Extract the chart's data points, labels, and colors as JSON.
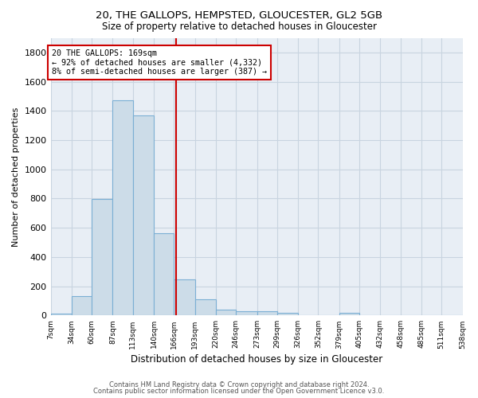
{
  "title1": "20, THE GALLOPS, HEMPSTED, GLOUCESTER, GL2 5GB",
  "title2": "Size of property relative to detached houses in Gloucester",
  "xlabel": "Distribution of detached houses by size in Gloucester",
  "ylabel": "Number of detached properties",
  "footer1": "Contains HM Land Registry data © Crown copyright and database right 2024.",
  "footer2": "Contains public sector information licensed under the Open Government Licence v3.0.",
  "annotation_title": "20 THE GALLOPS: 169sqm",
  "annotation_line1": "← 92% of detached houses are smaller (4,332)",
  "annotation_line2": "8% of semi-detached houses are larger (387) →",
  "property_size": 169,
  "bar_color": "#ccdce8",
  "bar_edge_color": "#7bafd4",
  "vline_color": "#cc0000",
  "annotation_box_color": "#cc0000",
  "grid_color": "#c8d4e0",
  "background_color": "#e8eef5",
  "ylim": [
    0,
    1900
  ],
  "bin_edges": [
    7,
    34,
    60,
    87,
    113,
    140,
    166,
    193,
    220,
    246,
    273,
    299,
    326,
    352,
    379,
    405,
    432,
    458,
    485,
    511,
    538
  ],
  "bar_heights": [
    13,
    130,
    795,
    1470,
    1370,
    565,
    248,
    110,
    38,
    30,
    30,
    20,
    0,
    0,
    20,
    0,
    0,
    0,
    0,
    0
  ],
  "yticks": [
    0,
    200,
    400,
    600,
    800,
    1000,
    1200,
    1400,
    1600,
    1800
  ],
  "tick_labels": [
    "7sqm",
    "34sqm",
    "60sqm",
    "87sqm",
    "113sqm",
    "140sqm",
    "166sqm",
    "193sqm",
    "220sqm",
    "246sqm",
    "273sqm",
    "299sqm",
    "326sqm",
    "352sqm",
    "379sqm",
    "405sqm",
    "432sqm",
    "458sqm",
    "485sqm",
    "511sqm",
    "538sqm"
  ]
}
